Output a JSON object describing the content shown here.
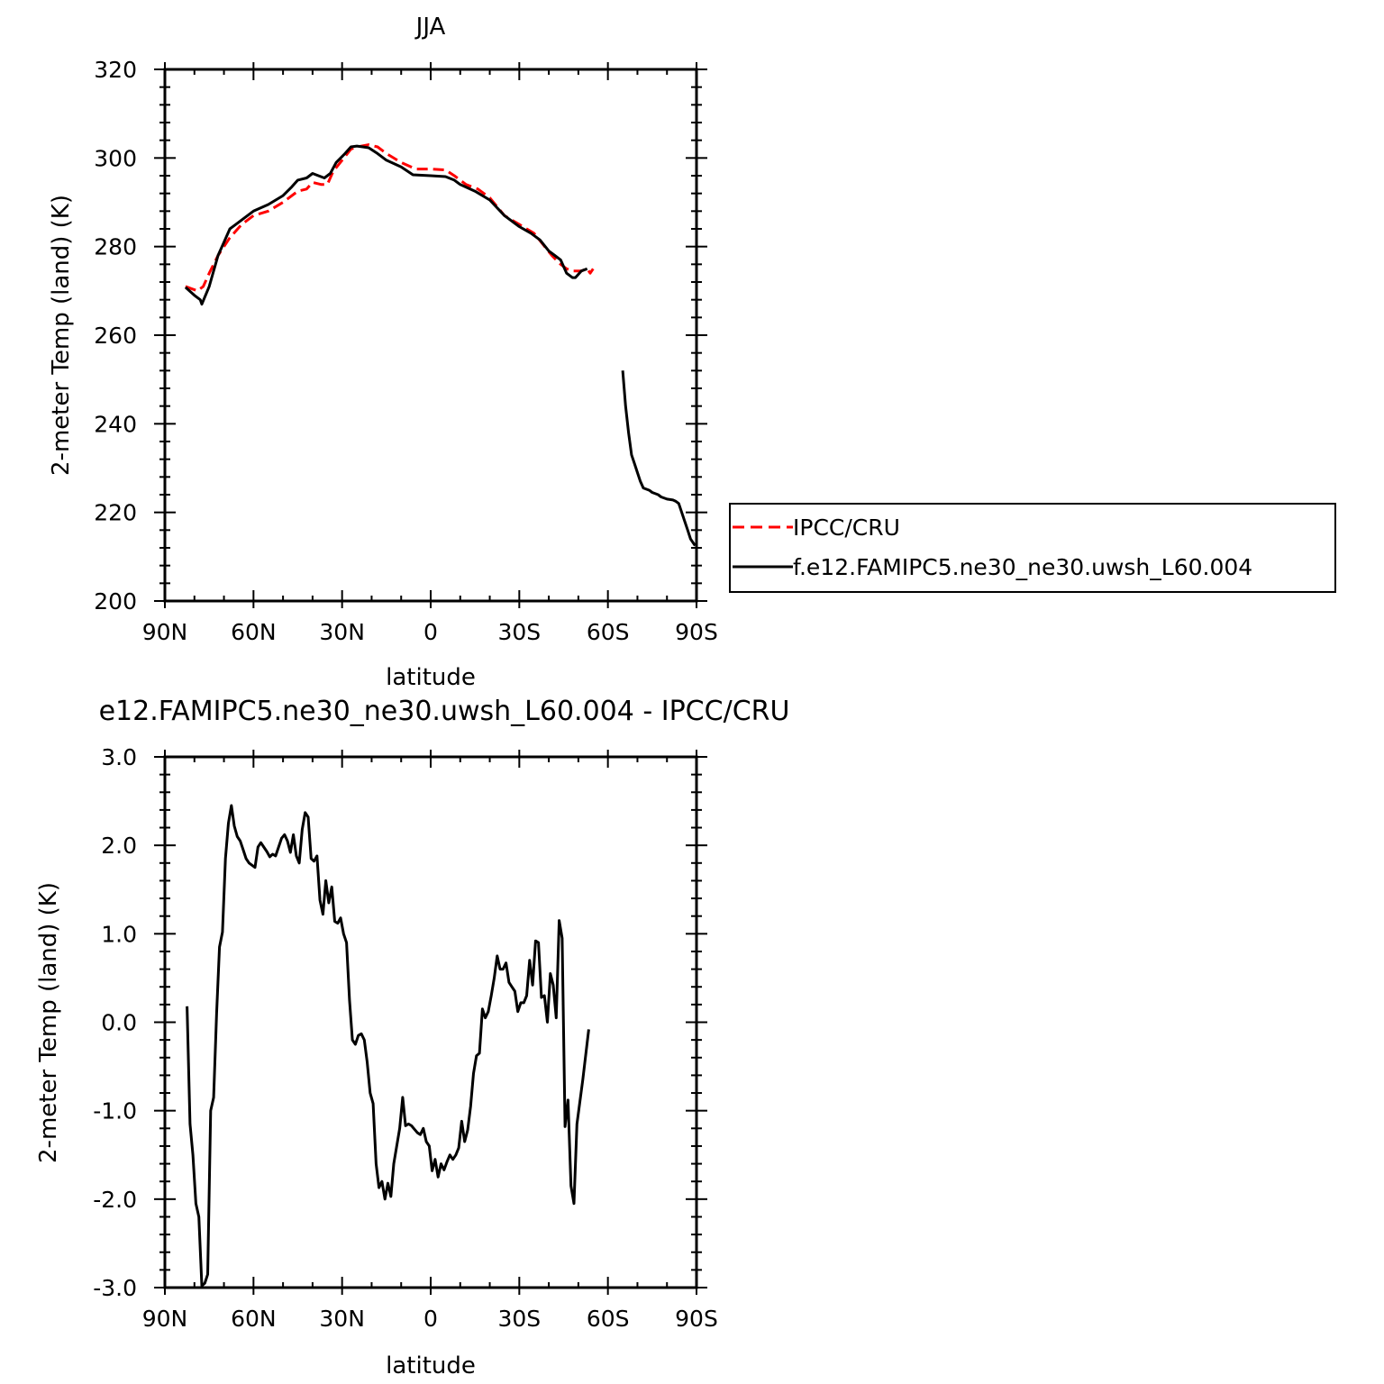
{
  "chart_data": [
    {
      "type": "line",
      "title": "JJA",
      "xlabel": "latitude",
      "ylabel": "2-meter Temp (land) (K)",
      "xlim": [
        90,
        -90
      ],
      "ylim": [
        200,
        320
      ],
      "x_ticks": [
        90,
        60,
        30,
        0,
        -30,
        -60,
        -90
      ],
      "x_tick_labels": [
        "90N",
        "60N",
        "30N",
        "0",
        "30S",
        "60S",
        "90S"
      ],
      "y_ticks": [
        200,
        220,
        240,
        260,
        280,
        300,
        320
      ],
      "y_tick_labels": [
        "200",
        "220",
        "240",
        "260",
        "280",
        "300",
        "320"
      ],
      "grid": false,
      "legend_position": "right",
      "series": [
        {
          "name": "IPCC/CRU",
          "color": "#ff0000",
          "style": "dashed",
          "points": [
            [
              83,
              271
            ],
            [
              81,
              270.5
            ],
            [
              79,
              270
            ],
            [
              77,
              271
            ],
            [
              75,
              274
            ],
            [
              72,
              278
            ],
            [
              68,
              282
            ],
            [
              64,
              285
            ],
            [
              60,
              287
            ],
            [
              55,
              288
            ],
            [
              50,
              290
            ],
            [
              45,
              292.5
            ],
            [
              42,
              293
            ],
            [
              40,
              294.5
            ],
            [
              37,
              294
            ],
            [
              35,
              294
            ],
            [
              33,
              297
            ],
            [
              30,
              299.5
            ],
            [
              27,
              302
            ],
            [
              25,
              302.5
            ],
            [
              21,
              303
            ],
            [
              18,
              302.5
            ],
            [
              15,
              301
            ],
            [
              10,
              299
            ],
            [
              5,
              297.5
            ],
            [
              0,
              297.5
            ],
            [
              -5,
              297.3
            ],
            [
              -8,
              296
            ],
            [
              -12,
              294
            ],
            [
              -16,
              293
            ],
            [
              -20,
              291
            ],
            [
              -25,
              287
            ],
            [
              -30,
              285
            ],
            [
              -35,
              283
            ],
            [
              -38,
              280.5
            ],
            [
              -41,
              278
            ],
            [
              -44,
              276
            ],
            [
              -46,
              275
            ],
            [
              -48,
              274.5
            ],
            [
              -51,
              274.5
            ],
            [
              -53,
              275
            ],
            [
              -54,
              274
            ],
            [
              -55,
              275
            ]
          ]
        },
        {
          "name": "f.e12.FAMIPC5.ne30_ne30.uwsh_L60.004",
          "color": "#000000",
          "style": "solid",
          "points": [
            [
              83,
              270.8
            ],
            [
              80,
              269
            ],
            [
              78,
              268
            ],
            [
              77.5,
              267
            ],
            [
              75,
              271
            ],
            [
              72,
              278
            ],
            [
              70,
              281
            ],
            [
              68,
              284
            ],
            [
              66,
              285
            ],
            [
              63,
              286.5
            ],
            [
              60,
              288
            ],
            [
              55,
              289.5
            ],
            [
              50,
              291.5
            ],
            [
              47,
              293.5
            ],
            [
              45,
              295
            ],
            [
              42,
              295.5
            ],
            [
              40,
              296.5
            ],
            [
              38,
              296
            ],
            [
              36,
              295.5
            ],
            [
              34,
              296.5
            ],
            [
              32,
              299
            ],
            [
              29,
              301
            ],
            [
              27,
              302.5
            ],
            [
              25,
              302.7
            ],
            [
              23,
              302.5
            ],
            [
              21,
              302.3
            ],
            [
              18,
              301
            ],
            [
              15,
              299.5
            ],
            [
              10,
              298
            ],
            [
              6,
              296.2
            ],
            [
              0,
              296
            ],
            [
              -5,
              295.8
            ],
            [
              -8,
              295
            ],
            [
              -10,
              294
            ],
            [
              -15,
              292.5
            ],
            [
              -20,
              290.5
            ],
            [
              -25,
              287
            ],
            [
              -30,
              284.5
            ],
            [
              -34,
              283
            ],
            [
              -37,
              281.5
            ],
            [
              -40,
              279
            ],
            [
              -42,
              278
            ],
            [
              -44,
              277
            ],
            [
              -46,
              274
            ],
            [
              -48,
              273
            ],
            [
              -49,
              273
            ],
            [
              -51,
              274.5
            ],
            [
              -53,
              275
            ]
          ]
        },
        {
          "name": "f.e12.FAMIPC5.ne30_ne30.uwsh_L60.004",
          "color": "#000000",
          "style": "solid",
          "points": [
            [
              -65,
              252
            ],
            [
              -66,
              244
            ],
            [
              -67,
              238
            ],
            [
              -68,
              233
            ],
            [
              -69,
              231
            ],
            [
              -70,
              229
            ],
            [
              -71,
              227
            ],
            [
              -72,
              225.5
            ],
            [
              -74,
              225
            ],
            [
              -75,
              224.5
            ],
            [
              -77,
              224
            ],
            [
              -78,
              223.5
            ],
            [
              -80,
              223
            ],
            [
              -82,
              222.8
            ],
            [
              -83,
              222.5
            ],
            [
              -84,
              222
            ],
            [
              -85,
              220
            ],
            [
              -86,
              218
            ],
            [
              -87,
              216
            ],
            [
              -88,
              214
            ],
            [
              -89.5,
              212.5
            ]
          ]
        }
      ]
    },
    {
      "type": "line",
      "title": "e12.FAMIPC5.ne30_ne30.uwsh_L60.004 - IPCC/CRU",
      "xlabel": "latitude",
      "ylabel": "2-meter Temp (land) (K)",
      "xlim": [
        90,
        -90
      ],
      "ylim": [
        -3.0,
        3.0
      ],
      "x_ticks": [
        90,
        60,
        30,
        0,
        -30,
        -60,
        -90
      ],
      "x_tick_labels": [
        "90N",
        "60N",
        "30N",
        "0",
        "30S",
        "60S",
        "90S"
      ],
      "y_ticks": [
        -3,
        -2,
        -1,
        0,
        1,
        2,
        3
      ],
      "y_tick_labels": [
        "-3.0",
        "-2.0",
        "-1.0",
        "0.0",
        "1.0",
        "2.0",
        "3.0"
      ],
      "grid": false,
      "series": [
        {
          "color": "#000000",
          "style": "solid",
          "points": [
            [
              82.5,
              0.18
            ],
            [
              81.5,
              -1.15
            ],
            [
              80.5,
              -1.5
            ],
            [
              79.5,
              -2.05
            ],
            [
              78.5,
              -2.2
            ],
            [
              77.5,
              -2.98
            ],
            [
              76.5,
              -2.95
            ],
            [
              75.5,
              -2.85
            ],
            [
              74.5,
              -1.0
            ],
            [
              73.5,
              -0.85
            ],
            [
              72.5,
              0.1
            ],
            [
              71.5,
              0.85
            ],
            [
              70.5,
              1.02
            ],
            [
              69.5,
              1.85
            ],
            [
              68.5,
              2.25
            ],
            [
              67.5,
              2.45
            ],
            [
              66.5,
              2.22
            ],
            [
              65.5,
              2.1
            ],
            [
              64.5,
              2.05
            ],
            [
              63.5,
              1.95
            ],
            [
              62.5,
              1.85
            ],
            [
              61.5,
              1.8
            ],
            [
              59.5,
              1.75
            ],
            [
              58.5,
              1.98
            ],
            [
              57.5,
              2.03
            ],
            [
              56.5,
              1.98
            ],
            [
              55.5,
              1.93
            ],
            [
              54.5,
              1.87
            ],
            [
              53.5,
              1.9
            ],
            [
              52.5,
              1.88
            ],
            [
              51.5,
              1.98
            ],
            [
              50.5,
              2.08
            ],
            [
              49.5,
              2.12
            ],
            [
              48.5,
              2.05
            ],
            [
              47.5,
              1.92
            ],
            [
              46.5,
              2.12
            ],
            [
              45.5,
              1.88
            ],
            [
              44.5,
              1.8
            ],
            [
              43.5,
              2.18
            ],
            [
              42.5,
              2.37
            ],
            [
              41.5,
              2.32
            ],
            [
              40.5,
              1.85
            ],
            [
              39.5,
              1.82
            ],
            [
              38.5,
              1.88
            ],
            [
              37.5,
              1.38
            ],
            [
              36.5,
              1.22
            ],
            [
              35.5,
              1.6
            ],
            [
              34.5,
              1.35
            ],
            [
              33.5,
              1.53
            ],
            [
              32.5,
              1.14
            ],
            [
              31.5,
              1.12
            ],
            [
              30.5,
              1.18
            ],
            [
              29.5,
              1.0
            ],
            [
              28.5,
              0.9
            ],
            [
              27.5,
              0.25
            ],
            [
              26.5,
              -0.2
            ],
            [
              25.5,
              -0.25
            ],
            [
              24.5,
              -0.15
            ],
            [
              23.5,
              -0.13
            ],
            [
              22.5,
              -0.2
            ],
            [
              21.5,
              -0.45
            ],
            [
              20.5,
              -0.8
            ],
            [
              19.5,
              -0.92
            ],
            [
              18.5,
              -1.6
            ],
            [
              17.5,
              -1.87
            ],
            [
              16.5,
              -1.8
            ],
            [
              15.5,
              -2.0
            ],
            [
              14.5,
              -1.82
            ],
            [
              13.5,
              -1.97
            ],
            [
              12.5,
              -1.6
            ],
            [
              11.5,
              -1.4
            ],
            [
              10.5,
              -1.2
            ],
            [
              9.5,
              -0.85
            ],
            [
              8.5,
              -1.17
            ],
            [
              7.5,
              -1.15
            ],
            [
              6.5,
              -1.17
            ],
            [
              5.5,
              -1.21
            ],
            [
              4.5,
              -1.25
            ],
            [
              3.5,
              -1.27
            ],
            [
              2.5,
              -1.2
            ],
            [
              1.5,
              -1.35
            ],
            [
              0.5,
              -1.4
            ],
            [
              -0.5,
              -1.68
            ],
            [
              -1.5,
              -1.55
            ],
            [
              -2.5,
              -1.75
            ],
            [
              -3.5,
              -1.6
            ],
            [
              -4.5,
              -1.67
            ],
            [
              -5.5,
              -1.58
            ],
            [
              -6.5,
              -1.5
            ],
            [
              -7.5,
              -1.55
            ],
            [
              -8.5,
              -1.5
            ],
            [
              -9.5,
              -1.42
            ],
            [
              -10.5,
              -1.12
            ],
            [
              -11.5,
              -1.35
            ],
            [
              -12.5,
              -1.22
            ],
            [
              -13.5,
              -0.95
            ],
            [
              -14.5,
              -0.58
            ],
            [
              -15.5,
              -0.38
            ],
            [
              -16.5,
              -0.35
            ],
            [
              -17.5,
              0.15
            ],
            [
              -18.5,
              0.05
            ],
            [
              -19.5,
              0.12
            ],
            [
              -20.5,
              0.3
            ],
            [
              -21.5,
              0.5
            ],
            [
              -22.5,
              0.75
            ],
            [
              -23.5,
              0.6
            ],
            [
              -24.5,
              0.6
            ],
            [
              -25.5,
              0.67
            ],
            [
              -26.5,
              0.45
            ],
            [
              -27.5,
              0.4
            ],
            [
              -28.5,
              0.35
            ],
            [
              -29.5,
              0.12
            ],
            [
              -30.5,
              0.22
            ],
            [
              -31.5,
              0.22
            ],
            [
              -32.5,
              0.3
            ],
            [
              -33.5,
              0.7
            ],
            [
              -34.5,
              0.42
            ],
            [
              -35.5,
              0.92
            ],
            [
              -36.5,
              0.9
            ],
            [
              -37.5,
              0.28
            ],
            [
              -38.5,
              0.3
            ],
            [
              -39.5,
              0.0
            ],
            [
              -40.5,
              0.55
            ],
            [
              -41.5,
              0.42
            ],
            [
              -42.5,
              0.05
            ],
            [
              -43.5,
              1.15
            ],
            [
              -44.5,
              0.95
            ],
            [
              -45.5,
              -1.18
            ],
            [
              -46.5,
              -0.88
            ],
            [
              -47.5,
              -1.85
            ],
            [
              -48.5,
              -2.05
            ],
            [
              -49.5,
              -1.15
            ],
            [
              -51.5,
              -0.65
            ],
            [
              -53.5,
              -0.08
            ]
          ]
        }
      ]
    }
  ]
}
